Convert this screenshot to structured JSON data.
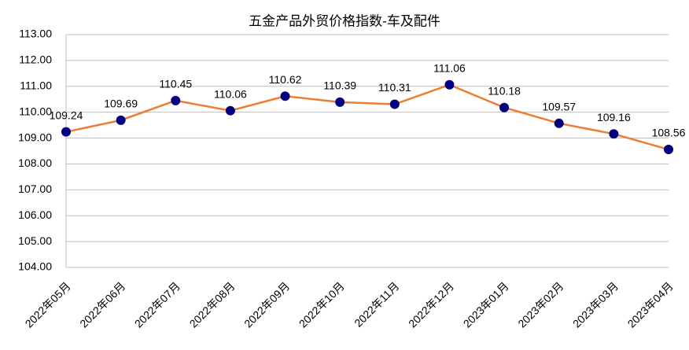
{
  "chart_data": {
    "type": "line",
    "title": "五金产品外贸价格指数-车及配件",
    "categories": [
      "2022年05月",
      "2022年06月",
      "2022年07月",
      "2022年08月",
      "2022年09月",
      "2022年10月",
      "2022年11月",
      "2022年12月",
      "2023年01月",
      "2023年02月",
      "2023年03月",
      "2023年04月"
    ],
    "values": [
      109.24,
      109.69,
      110.45,
      110.06,
      110.62,
      110.39,
      110.31,
      111.06,
      110.18,
      109.57,
      109.16,
      108.56
    ],
    "color": "#ed7d31",
    "marker_color": "#000080",
    "ylim": [
      104,
      113
    ],
    "yticks": [
      {
        "value": 104,
        "label": "104.00"
      },
      {
        "value": 105,
        "label": "105.00"
      },
      {
        "value": 106,
        "label": "106.00"
      },
      {
        "value": 107,
        "label": "107.00"
      },
      {
        "value": 108,
        "label": "108.00"
      },
      {
        "value": 109,
        "label": "109.00"
      },
      {
        "value": 110,
        "label": "110.00"
      },
      {
        "value": 111,
        "label": "111.00"
      },
      {
        "value": 112,
        "label": "112.00"
      },
      {
        "value": 113,
        "label": "113.00"
      }
    ],
    "grid": true
  }
}
